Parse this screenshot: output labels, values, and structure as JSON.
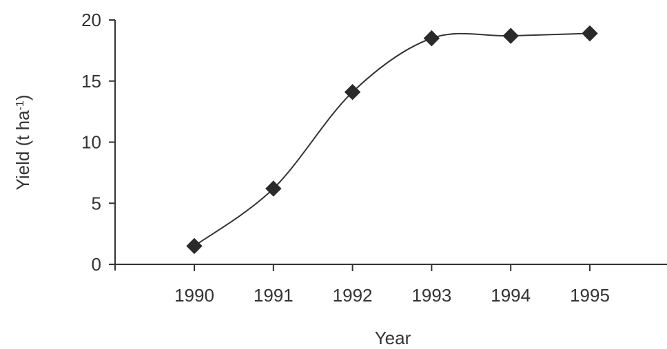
{
  "chart_data": {
    "type": "line",
    "title": "",
    "xlabel": "Year",
    "ylabel": "Yield (t ha",
    "ylabel_superscript": "-1",
    "ylabel_suffix": ")",
    "x": [
      1990,
      1991,
      1992,
      1993,
      1994,
      1995
    ],
    "x_tick_labels": [
      "1990",
      "1991",
      "1992",
      "1993",
      "1994",
      "1995"
    ],
    "y_ticks": [
      0,
      5,
      10,
      15,
      20
    ],
    "y_tick_labels": [
      "0",
      "5",
      "10",
      "15",
      "20"
    ],
    "ylim": [
      0,
      20
    ],
    "xlim": [
      1989,
      1996
    ],
    "series": [
      {
        "values": [
          1.5,
          6.2,
          14.1,
          18.5,
          18.7,
          18.9
        ],
        "marker": "diamond",
        "smooth": true,
        "color": "#2a2a2a"
      }
    ],
    "grid": false,
    "legend": "none"
  }
}
